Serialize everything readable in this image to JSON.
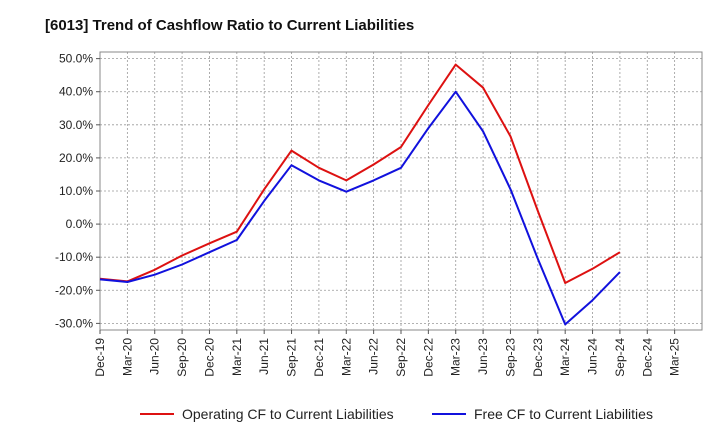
{
  "chart_data": {
    "type": "line",
    "title": "[6013]  Trend of Cashflow Ratio to Current Liabilities",
    "xlabel": "",
    "ylabel": "",
    "ylim": [
      -32,
      52
    ],
    "y_ticks": [
      50,
      40,
      30,
      20,
      10,
      0,
      -10,
      -20,
      -30
    ],
    "y_tick_labels": [
      "50.0%",
      "40.0%",
      "30.0%",
      "20.0%",
      "10.0%",
      "0.0%",
      "-10.0%",
      "-20.0%",
      "-30.0%"
    ],
    "categories": [
      "Dec-19",
      "Mar-20",
      "Jun-20",
      "Sep-20",
      "Dec-20",
      "Mar-21",
      "Jun-21",
      "Sep-21",
      "Dec-21",
      "Mar-22",
      "Jun-22",
      "Sep-22",
      "Dec-22",
      "Mar-23",
      "Jun-23",
      "Sep-23",
      "Dec-23",
      "Mar-24",
      "Jun-24",
      "Sep-24",
      "Dec-24",
      "Mar-25"
    ],
    "grid": true,
    "legend_position": "bottom",
    "series": [
      {
        "name": "Operating CF to Current Liabilities",
        "color": "#dd1111",
        "values": [
          -16.5,
          -17.3,
          -13.8,
          -9.5,
          -5.8,
          -2.3,
          10.5,
          22.2,
          17.0,
          13.2,
          18.0,
          23.3,
          36.0,
          48.2,
          41.2,
          26.5,
          4.0,
          -17.8,
          -13.5,
          -8.5,
          null,
          null
        ]
      },
      {
        "name": "Free CF to Current Liabilities",
        "color": "#1111dd",
        "values": [
          -16.7,
          -17.5,
          -15.3,
          -12.2,
          -8.5,
          -4.8,
          7.0,
          17.8,
          13.2,
          9.8,
          13.2,
          17.0,
          29.0,
          40.0,
          28.0,
          10.5,
          -10.5,
          -30.3,
          -23.0,
          -14.5,
          null,
          null
        ]
      }
    ]
  }
}
